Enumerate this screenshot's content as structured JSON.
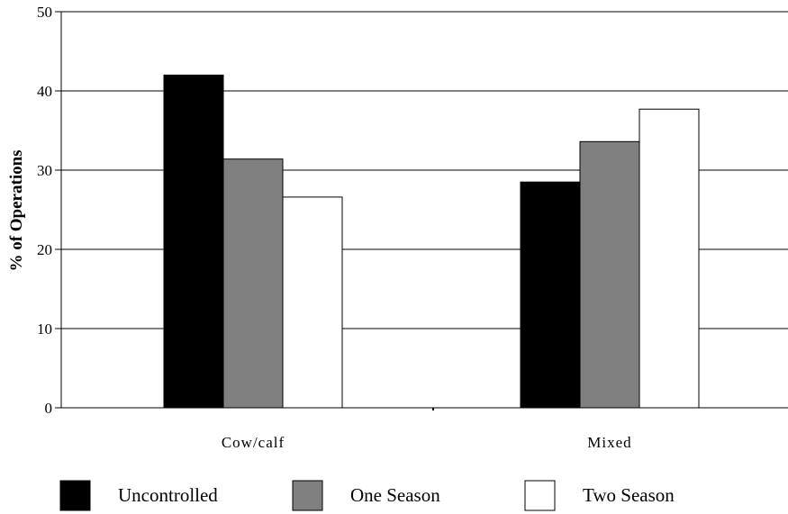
{
  "chart_data": {
    "type": "bar",
    "title": "",
    "xlabel": "",
    "ylabel": "% of Operations",
    "ylim": [
      0,
      50
    ],
    "yticks": [
      0,
      10,
      20,
      30,
      40,
      50
    ],
    "grid": true,
    "legend_position": "bottom",
    "categories": [
      "Cow/calf",
      "Mixed"
    ],
    "series": [
      {
        "name": "Uncontrolled",
        "color": "#000000",
        "values": [
          42.0,
          28.5
        ]
      },
      {
        "name": "One Season",
        "color": "#808080",
        "values": [
          31.4,
          33.6
        ]
      },
      {
        "name": "Two Season",
        "color": "#ffffff",
        "values": [
          26.6,
          37.7
        ]
      }
    ]
  }
}
